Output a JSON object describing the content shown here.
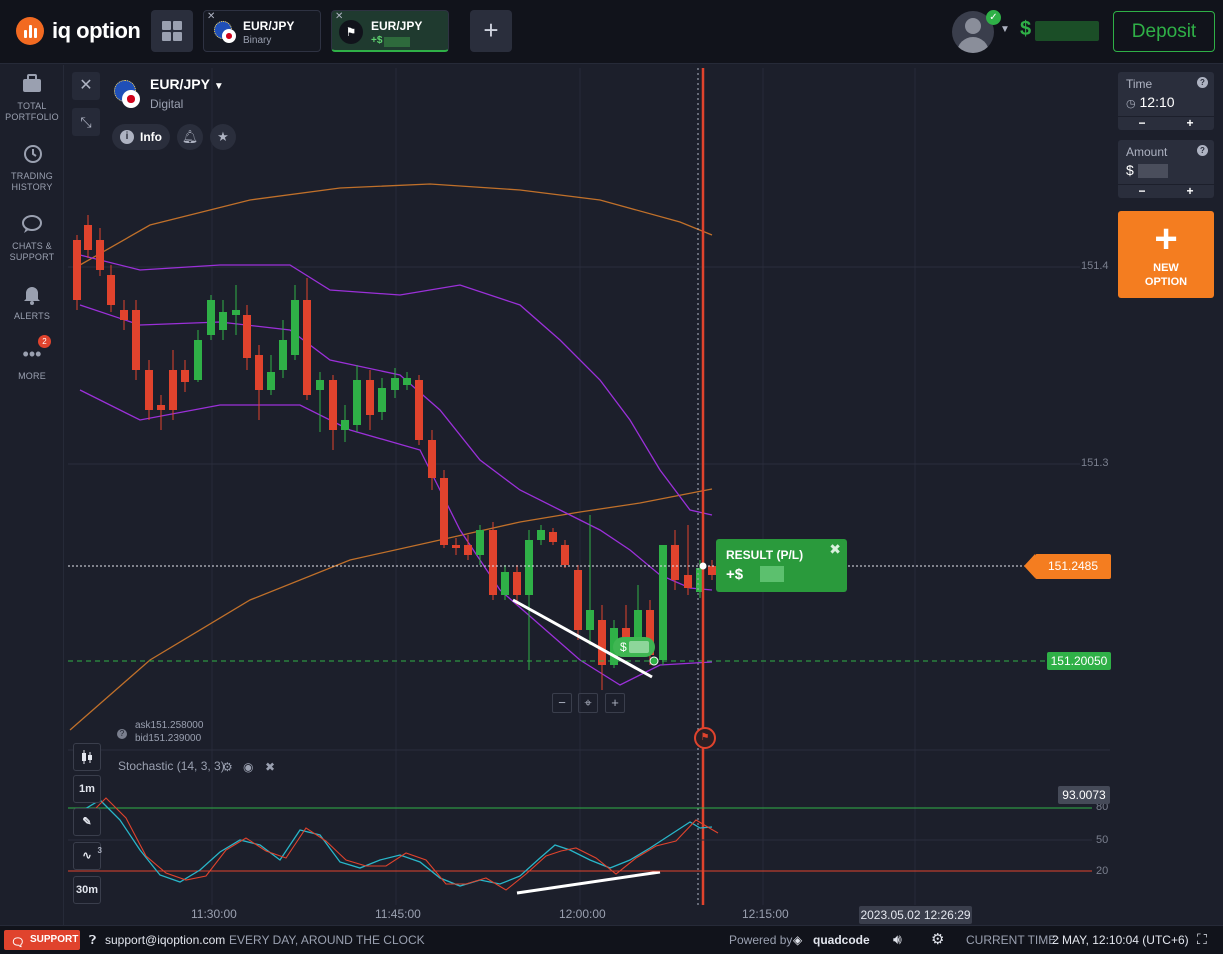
{
  "topbar": {
    "logo_text": "iq option",
    "tabs": [
      {
        "name": "EUR/JPY",
        "sub": "Binary"
      },
      {
        "name": "EUR/JPY",
        "sub": "+$"
      }
    ],
    "add_tab": "+",
    "balance_symbol": "$",
    "deposit_label": "Deposit"
  },
  "sidebar": {
    "items": [
      {
        "label_line1": "TOTAL",
        "label_line2": "PORTFOLIO",
        "icon": "briefcase-icon"
      },
      {
        "label_line1": "TRADING",
        "label_line2": "HISTORY",
        "icon": "history-icon"
      },
      {
        "label_line1": "CHATS &",
        "label_line2": "SUPPORT",
        "icon": "chat-icon"
      },
      {
        "label_line1": "ALERTS",
        "label_line2": "",
        "icon": "bell-icon"
      },
      {
        "label_line1": "MORE",
        "label_line2": "",
        "icon": "more-icon",
        "badge": "2"
      }
    ]
  },
  "asset": {
    "name": "EUR/JPY",
    "type": "Digital",
    "info_label": "Info"
  },
  "trade_panel": {
    "time_label": "Time",
    "time_value": "12:10",
    "amount_label": "Amount",
    "amount_symbol": "$",
    "minus": "−",
    "plus": "+",
    "new_option_line1": "NEW",
    "new_option_line2": "OPTION"
  },
  "price_axis": {
    "ticks": [
      "151.4",
      "151.3"
    ],
    "current_price": "151.2485",
    "open_price": "151.20050"
  },
  "result": {
    "title": "RESULT (P/L)",
    "value_prefix": "+$"
  },
  "deal_marker_prefix": "$",
  "quotes": {
    "ask": "ask151.258000",
    "bid": "bid151.239000"
  },
  "indicator": {
    "title": "Stochastic (14, 3, 3)",
    "value_tag": "93.0073",
    "levels": [
      "80",
      "50",
      "20"
    ]
  },
  "timeframe": {
    "candle_size": "1m",
    "chart_range": "30m",
    "indicators_count": "3"
  },
  "time_axis": [
    "11:30:00",
    "11:45:00",
    "12:00:00",
    "12:15:00"
  ],
  "cursor_time": "2023.05.02 12:26:29",
  "footer": {
    "support_label": "SUPPORT",
    "email": "support@iqoption.com",
    "hours": "EVERY DAY, AROUND THE CLOCK",
    "powered_by": "Powered by",
    "brand": "quadcode",
    "current_time_label": "CURRENT TIME:",
    "current_time_value": "2 MAY, 12:10:04 (UTC+6)"
  },
  "colors": {
    "bull": "#2fb047",
    "bear": "#e0432d",
    "accent": "#f47d20",
    "bb": "#9b30d9",
    "ma": "#c0702a"
  }
}
